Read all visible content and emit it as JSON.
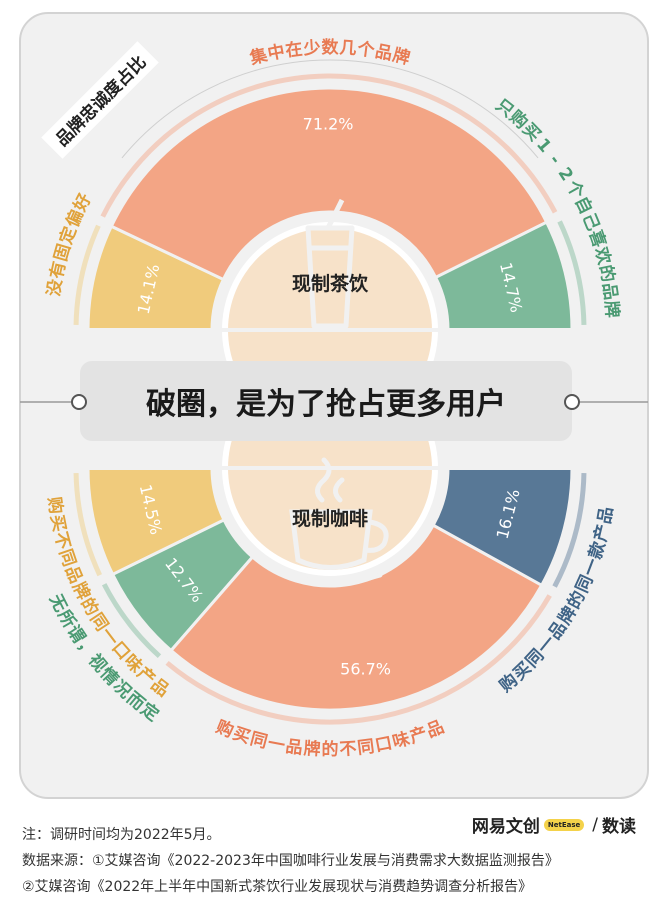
{
  "chart_data": [
    {
      "type": "pie",
      "title": "品牌忠诚度占比",
      "center_label": "现制茶饮",
      "slices": [
        {
          "label": "没有固定偏好",
          "value": 14.1,
          "value_label": "14.1%",
          "color": "#f0cb7c"
        },
        {
          "label": "集中在少数几个品牌",
          "value": 71.2,
          "value_label": "71.2%",
          "color": "#f3a585"
        },
        {
          "label": "只购买1-2个自己喜欢的品牌",
          "value": 14.7,
          "value_label": "14.7%",
          "color": "#7db99a"
        }
      ]
    },
    {
      "type": "pie",
      "center_label": "现制咖啡",
      "slices": [
        {
          "label": "购买不同品牌的同一口味产品",
          "value": 14.5,
          "value_label": "14.5%",
          "color": "#f0cb7c"
        },
        {
          "label": "无所谓，视情况而定",
          "value": 12.7,
          "value_label": "12.7%",
          "color": "#7db99a"
        },
        {
          "label": "购买同一品牌的不同口味产品",
          "value": 56.7,
          "value_label": "56.7%",
          "color": "#f3a585"
        },
        {
          "label": "购买同一品牌的同一款产品",
          "value": 16.1,
          "value_label": "16.1%",
          "color": "#587896"
        }
      ]
    }
  ],
  "headline": "破圈，是为了抢占更多用户",
  "footer": {
    "note": "注：调研时间均为2022年5月。",
    "source1": "数据来源：①艾媒咨询《2022-2023年中国咖啡行业发展与消费需求大数据监测报告》",
    "source2": "②艾媒咨询《2022年上半年中国新式茶饮行业发展现状与消费趋势调查分析报告》"
  },
  "brand": {
    "name1": "网易文创",
    "mid": "NetEase",
    "name2": "数读"
  },
  "colors": {
    "panel": "#f1f1f1",
    "border": "#d3d3d3",
    "center": "#f7e2c9",
    "headline_bg": "#e3e3e3"
  }
}
